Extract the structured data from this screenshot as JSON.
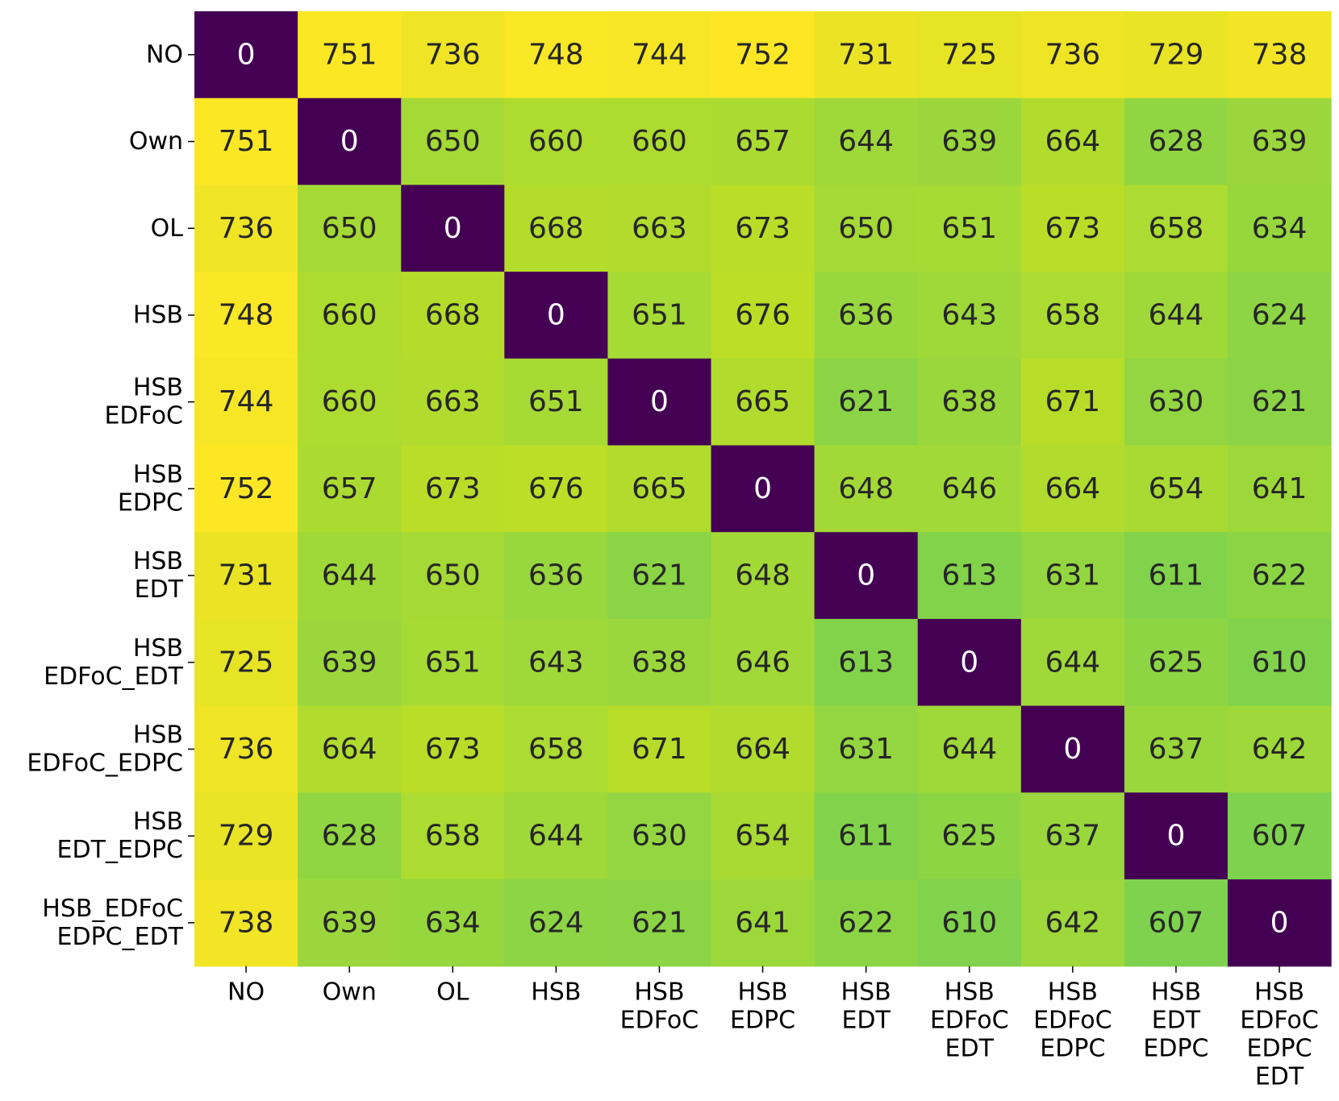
{
  "chart_data": {
    "type": "heatmap",
    "title": "",
    "xlabel": "",
    "ylabel": "",
    "colormap": "viridis",
    "color_range": [
      0,
      752
    ],
    "x_tick_labels": [
      [
        "NO"
      ],
      [
        "Own"
      ],
      [
        "OL"
      ],
      [
        "HSB"
      ],
      [
        "HSB",
        "EDFoC"
      ],
      [
        "HSB",
        "EDPC"
      ],
      [
        "HSB",
        "EDT"
      ],
      [
        "HSB",
        "EDFoC",
        "EDT"
      ],
      [
        "HSB",
        "EDFoC",
        "EDPC"
      ],
      [
        "HSB",
        "EDT",
        "EDPC"
      ],
      [
        "HSB",
        "EDFoC",
        "EDPC",
        "EDT"
      ]
    ],
    "y_tick_labels": [
      [
        "NO"
      ],
      [
        "Own"
      ],
      [
        "OL"
      ],
      [
        "HSB"
      ],
      [
        "HSB",
        "EDFoC"
      ],
      [
        "HSB",
        "EDPC"
      ],
      [
        "HSB",
        "EDT"
      ],
      [
        "HSB",
        "EDFoC_EDT"
      ],
      [
        "HSB",
        "EDFoC_EDPC"
      ],
      [
        "HSB",
        "EDT_EDPC"
      ],
      [
        "HSB_EDFoC",
        "EDPC_EDT"
      ]
    ],
    "matrix": [
      [
        0,
        751,
        736,
        748,
        744,
        752,
        731,
        725,
        736,
        729,
        738
      ],
      [
        751,
        0,
        650,
        660,
        660,
        657,
        644,
        639,
        664,
        628,
        639
      ],
      [
        736,
        650,
        0,
        668,
        663,
        673,
        650,
        651,
        673,
        658,
        634
      ],
      [
        748,
        660,
        668,
        0,
        651,
        676,
        636,
        643,
        658,
        644,
        624
      ],
      [
        744,
        660,
        663,
        651,
        0,
        665,
        621,
        638,
        671,
        630,
        621
      ],
      [
        752,
        657,
        673,
        676,
        665,
        0,
        648,
        646,
        664,
        654,
        641
      ],
      [
        731,
        644,
        650,
        636,
        621,
        648,
        0,
        613,
        631,
        611,
        622
      ],
      [
        725,
        639,
        651,
        643,
        638,
        646,
        613,
        0,
        644,
        625,
        610
      ],
      [
        736,
        664,
        673,
        658,
        671,
        664,
        631,
        644,
        0,
        637,
        642
      ],
      [
        729,
        628,
        658,
        644,
        630,
        654,
        611,
        625,
        637,
        0,
        607
      ],
      [
        738,
        639,
        634,
        624,
        621,
        641,
        622,
        610,
        642,
        607,
        0
      ]
    ],
    "annotation_colors": {
      "dark_cell": "#ffffff",
      "light_cell": "#262626"
    },
    "legend": "none",
    "grid": false
  }
}
